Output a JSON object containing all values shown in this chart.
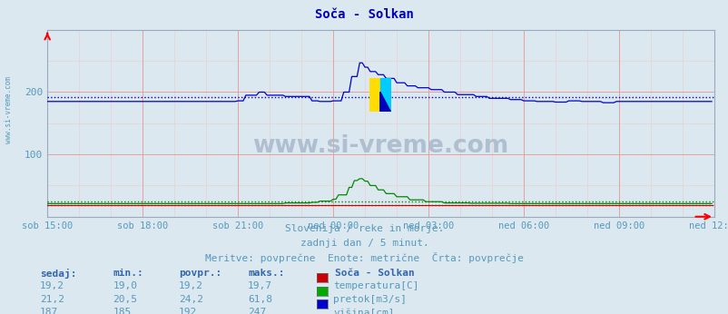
{
  "title": "Soča - Solkan",
  "bg_color": "#dce8f0",
  "plot_bg_color": "#dce8f0",
  "text_color": "#5599bb",
  "header_color": "#3366aa",
  "ylim": [
    0,
    300
  ],
  "xlim": [
    0,
    252
  ],
  "yticks": [
    100,
    200
  ],
  "tick_labels": [
    "sob 15:00",
    "sob 18:00",
    "sob 21:00",
    "ned 00:00",
    "ned 03:00",
    "ned 06:00",
    "ned 09:00",
    "ned 12:00"
  ],
  "tick_positions": [
    0,
    36,
    72,
    108,
    144,
    180,
    216,
    252
  ],
  "avg_blue": 192,
  "avg_green": 24.2,
  "avg_red": 19.2,
  "subtitle1": "Slovenija / reke in morje.",
  "subtitle2": "zadnji dan / 5 minut.",
  "subtitle3": "Meritve: povprečne  Enote: metrične  Črta: povprečje",
  "table_headers": [
    "sedaj:",
    "min.:",
    "povpr.:",
    "maks.:"
  ],
  "table_data": [
    [
      "19,2",
      "19,0",
      "19,2",
      "19,7"
    ],
    [
      "21,2",
      "20,5",
      "24,2",
      "61,8"
    ],
    [
      "187",
      "185",
      "192",
      "247"
    ]
  ],
  "station_label": "Soča - Solkan",
  "legend_labels": [
    "temperatura[C]",
    "pretok[m3/s]",
    "višina[cm]"
  ],
  "legend_colors": [
    "#cc0000",
    "#00aa00",
    "#0000cc"
  ],
  "watermark": "www.si-vreme.com",
  "watermark_color": "#aabbcc"
}
